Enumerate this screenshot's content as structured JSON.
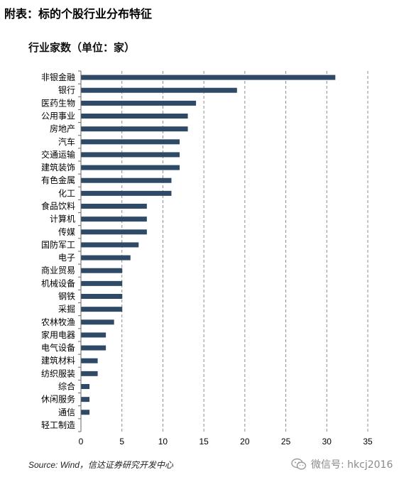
{
  "caption": "附表：标的个股行业分布特征",
  "source": "Source: Wind，信达证券研究开发中心",
  "watermark": {
    "text": "微信号: hkcj2016",
    "icon": "wechat-icon"
  },
  "colors": {
    "bar": "#2e4a66",
    "grid": "#8c8c8c",
    "axis": "#666666"
  },
  "chart_data": {
    "type": "bar",
    "orientation": "horizontal",
    "title": "行业家数（单位：家）",
    "xlabel": "",
    "ylabel": "",
    "xlim": [
      0,
      35
    ],
    "xticks": [
      0,
      5,
      10,
      15,
      20,
      25,
      30,
      35
    ],
    "grid": "vertical-dashed",
    "categories": [
      "非银金融",
      "银行",
      "医药生物",
      "公用事业",
      "房地产",
      "汽车",
      "交通运输",
      "建筑装饰",
      "有色金属",
      "化工",
      "食品饮料",
      "计算机",
      "传媒",
      "国防军工",
      "电子",
      "商业贸易",
      "机械设备",
      "钢铁",
      "采掘",
      "农林牧渔",
      "家用电器",
      "电气设备",
      "建筑材料",
      "纺织服装",
      "综合",
      "休闲服务",
      "通信",
      "轻工制造"
    ],
    "values": [
      31,
      19,
      14,
      13,
      13,
      12,
      12,
      12,
      11,
      11,
      8,
      8,
      8,
      7,
      6,
      5,
      5,
      5,
      5,
      4,
      3,
      3,
      2,
      2,
      1,
      1,
      1,
      0
    ]
  }
}
